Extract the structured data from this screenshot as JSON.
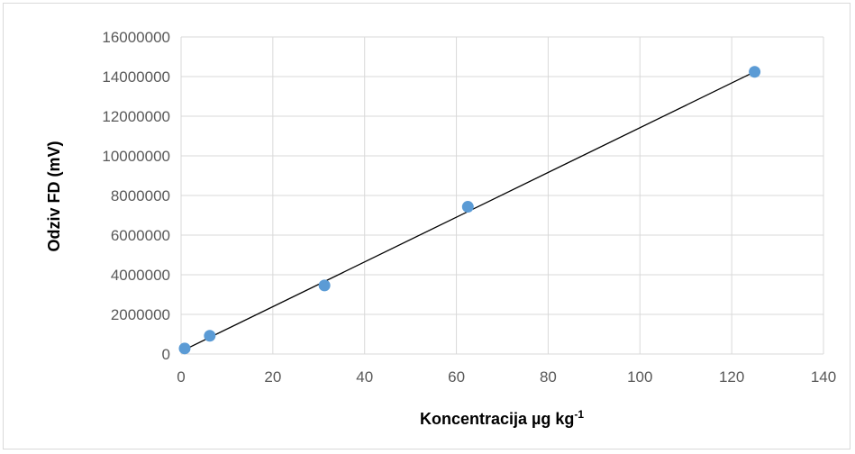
{
  "chart_data": {
    "type": "scatter",
    "title": "",
    "xlabel": "Koncentracija µg kg",
    "xlabel_superscript": "-1",
    "ylabel": "Odziv FD (mV)",
    "xlim": [
      0,
      140
    ],
    "ylim": [
      0,
      16000000
    ],
    "x_ticks": [
      0,
      20,
      40,
      60,
      80,
      100,
      120,
      140
    ],
    "y_ticks": [
      0,
      2000000,
      4000000,
      6000000,
      8000000,
      10000000,
      12000000,
      14000000,
      16000000
    ],
    "x_tick_labels": [
      "0",
      "20",
      "40",
      "60",
      "80",
      "100",
      "120",
      "140"
    ],
    "y_tick_labels": [
      "0",
      "2000000",
      "4000000",
      "6000000",
      "8000000",
      "10000000",
      "12000000",
      "14000000",
      "16000000"
    ],
    "grid": true,
    "legend": "none",
    "series": [
      {
        "x": [
          0.78,
          6.25,
          31.25,
          62.5,
          125
        ],
        "y": [
          280000,
          920000,
          3460000,
          7430000,
          14240000
        ]
      }
    ],
    "trendline": {
      "type": "linear",
      "x": [
        0.78,
        125
      ],
      "y": [
        220000,
        14240000
      ]
    },
    "colors": {
      "marker": "#5b9bd5",
      "trendline": "#000000",
      "grid": "#d9d9d9"
    }
  }
}
